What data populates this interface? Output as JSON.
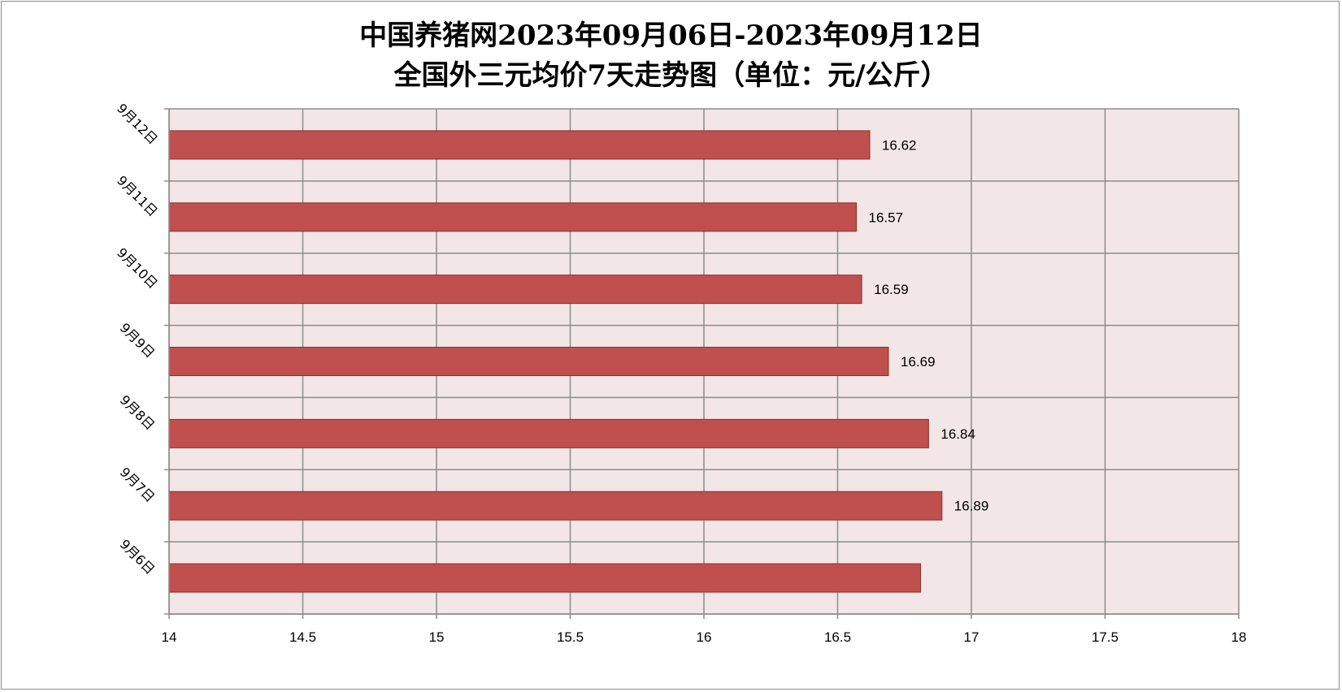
{
  "chart_data": {
    "type": "bar",
    "orientation": "horizontal",
    "title": "中国养猪网2023年09月06日-2023年09月12日",
    "subtitle": "全国外三元均价7天走势图（单位：元/公斤）",
    "categories": [
      "9月12日",
      "9月11日",
      "9月10日",
      "9月9日",
      "9月8日",
      "9月7日",
      "9月6日"
    ],
    "values": [
      16.62,
      16.57,
      16.59,
      16.69,
      16.84,
      16.89,
      16.81
    ],
    "data_labels": [
      "16.62",
      "16.57",
      "16.59",
      "16.69",
      "16.84",
      "16.89",
      ""
    ],
    "xlim": [
      14,
      18
    ],
    "xticks": [
      "14",
      "14.5",
      "15",
      "15.5",
      "16",
      "16.5",
      "17",
      "17.5",
      "18"
    ],
    "xlabel": "",
    "ylabel": "",
    "grid": true,
    "legend": "none",
    "bar_color": "#c0504d",
    "plot_background": "#f2e6e6"
  }
}
